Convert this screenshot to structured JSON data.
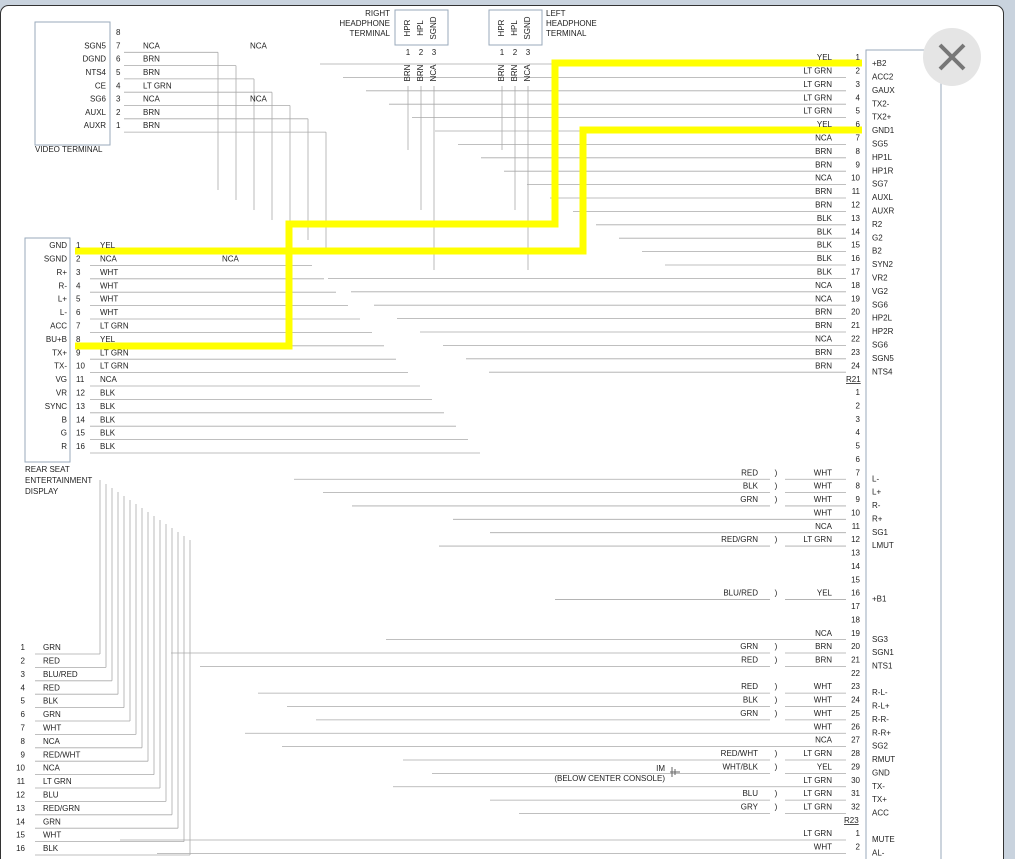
{
  "video_terminal": {
    "label": "VIDEO TERMINAL",
    "pins": [
      [
        8
      ],
      [
        7,
        "SGN5",
        "NCA",
        "NCA"
      ],
      [
        6,
        "DGND",
        "BRN"
      ],
      [
        5,
        "NTS4",
        "BRN"
      ],
      [
        4,
        "CE",
        "LT GRN"
      ],
      [
        3,
        "SG6",
        "NCA",
        "NCA"
      ],
      [
        2,
        "AUXL",
        "BRN"
      ],
      [
        1,
        "AUXR",
        "BRN"
      ]
    ]
  },
  "right_headphone": {
    "label": [
      "RIGHT",
      "HEADPHONE",
      "TERMINAL"
    ],
    "pins": [
      [
        "HPR",
        1,
        "BRN"
      ],
      [
        "HPL",
        2,
        "BRN"
      ],
      [
        "SGND",
        3,
        "NCA"
      ]
    ]
  },
  "left_headphone": {
    "label": [
      "LEFT",
      "HEADPHONE",
      "TERMINAL"
    ],
    "pins": [
      [
        "HPR",
        1,
        "BRN"
      ],
      [
        "HPL",
        2,
        "BRN"
      ],
      [
        "SGND",
        3,
        "NCA"
      ]
    ]
  },
  "rear_display": {
    "label": [
      "REAR SEAT",
      "ENTERTAINMENT",
      "DISPLAY"
    ],
    "pins": [
      [
        "GND",
        1,
        "YEL"
      ],
      [
        "SGND",
        2,
        "NCA",
        "NCA"
      ],
      [
        "R+",
        3,
        "WHT"
      ],
      [
        "R-",
        4,
        "WHT"
      ],
      [
        "L+",
        5,
        "WHT"
      ],
      [
        "L-",
        6,
        "WHT"
      ],
      [
        "ACC",
        7,
        "LT GRN"
      ],
      [
        "BU+B",
        8,
        "YEL"
      ],
      [
        "TX+",
        9,
        "LT GRN"
      ],
      [
        "TX-",
        10,
        "LT GRN"
      ],
      [
        "VG",
        11,
        "NCA"
      ],
      [
        "VR",
        12,
        "BLK"
      ],
      [
        "SYNC",
        13,
        "BLK"
      ],
      [
        "B",
        14,
        "BLK"
      ],
      [
        "G",
        15,
        "BLK"
      ],
      [
        "R",
        16,
        "BLK"
      ]
    ]
  },
  "r21": {
    "label": "R21",
    "rows": [
      [
        1,
        "YEL",
        "+B2"
      ],
      [
        2,
        "LT GRN",
        "ACC2"
      ],
      [
        3,
        "LT GRN",
        "GAUX"
      ],
      [
        4,
        "LT GRN",
        "TX2-"
      ],
      [
        5,
        "LT GRN",
        "TX2+"
      ],
      [
        6,
        "YEL",
        "GND1"
      ],
      [
        7,
        "NCA",
        "SG5"
      ],
      [
        8,
        "BRN",
        "HP1L"
      ],
      [
        9,
        "BRN",
        "HP1R"
      ],
      [
        10,
        "NCA",
        "SG7"
      ],
      [
        11,
        "BRN",
        "AUXL"
      ],
      [
        12,
        "BRN",
        "AUXR"
      ],
      [
        13,
        "BLK",
        "R2"
      ],
      [
        14,
        "BLK",
        "G2"
      ],
      [
        15,
        "BLK",
        "B2"
      ],
      [
        16,
        "BLK",
        "SYN2"
      ],
      [
        17,
        "BLK",
        "VR2"
      ],
      [
        18,
        "NCA",
        "VG2"
      ],
      [
        19,
        "NCA",
        "SG6"
      ],
      [
        20,
        "BRN",
        "HP2L"
      ],
      [
        21,
        "BRN",
        "HP2R"
      ],
      [
        22,
        "NCA",
        "SG6"
      ],
      [
        23,
        "BRN",
        "SGN5"
      ],
      [
        24,
        "BRN",
        "NTS4"
      ]
    ]
  },
  "r22": {
    "rows": [
      {
        "num": 1
      },
      {
        "num": 2
      },
      {
        "num": 3
      },
      {
        "num": 4
      },
      {
        "num": 5
      },
      {
        "num": 6
      },
      {
        "num": 7,
        "left": "RED",
        "wire": "WHT",
        "name": "L-"
      },
      {
        "num": 8,
        "left": "BLK",
        "wire": "WHT",
        "name": "L+"
      },
      {
        "num": 9,
        "left": "GRN",
        "wire": "WHT",
        "name": "R-"
      },
      {
        "num": 10,
        "wire": "WHT",
        "name": "R+"
      },
      {
        "num": 11,
        "wire": "NCA",
        "name": "SG1"
      },
      {
        "num": 12,
        "left": "RED/GRN",
        "wire": "LT GRN",
        "name": "LMUT"
      },
      {
        "num": 13
      },
      {
        "num": 14
      },
      {
        "num": 15
      },
      {
        "num": 16,
        "left": "BLU/RED",
        "wire": "YEL",
        "name": "+B1"
      },
      {
        "num": 17
      },
      {
        "num": 18
      },
      {
        "num": 19,
        "wire": "NCA",
        "name": "SG3"
      },
      {
        "num": 20,
        "left": "GRN",
        "wire": "BRN",
        "name": "SGN1"
      },
      {
        "num": 21,
        "left": "RED",
        "wire": "BRN",
        "name": "NTS1"
      },
      {
        "num": 22
      },
      {
        "num": 23,
        "left": "RED",
        "wire": "WHT",
        "name": "R-L-"
      },
      {
        "num": 24,
        "left": "BLK",
        "wire": "WHT",
        "name": "R-L+"
      },
      {
        "num": 25,
        "left": "GRN",
        "wire": "WHT",
        "name": "R-R-"
      },
      {
        "num": 26,
        "wire": "WHT",
        "name": "R-R+"
      },
      {
        "num": 27,
        "wire": "NCA",
        "name": "SG2"
      },
      {
        "num": 28,
        "left": "RED/WHT",
        "wire": "LT GRN",
        "name": "RMUT"
      },
      {
        "num": 29,
        "left": "WHT/BLK",
        "wire": "YEL",
        "name": "GND"
      },
      {
        "num": 30,
        "wire": "LT GRN",
        "name": "TX-"
      },
      {
        "num": 31,
        "left": "BLU",
        "wire": "LT GRN",
        "name": "TX+"
      },
      {
        "num": 32,
        "left": "GRY",
        "wire": "LT GRN",
        "name": "ACC"
      }
    ]
  },
  "r23": {
    "label": "R23",
    "rows": [
      {
        "num": 1,
        "wire": "LT GRN",
        "name": "MUTE"
      },
      {
        "num": 2,
        "wire": "WHT",
        "name": "AL-"
      }
    ]
  },
  "ground": {
    "label": "IM",
    "note": "(BELOW CENTER CONSOLE)"
  },
  "lower_connector": {
    "rows": [
      [
        1,
        "GRN"
      ],
      [
        2,
        "RED"
      ],
      [
        3,
        "BLU/RED"
      ],
      [
        4,
        "RED"
      ],
      [
        5,
        "BLK"
      ],
      [
        6,
        "GRN"
      ],
      [
        7,
        "WHT"
      ],
      [
        8,
        "NCA"
      ],
      [
        9,
        "RED/WHT"
      ],
      [
        10,
        "NCA"
      ],
      [
        11,
        "LT GRN"
      ],
      [
        12,
        "BLU"
      ],
      [
        13,
        "RED/GRN"
      ],
      [
        14,
        "GRN"
      ],
      [
        15,
        "WHT"
      ],
      [
        16,
        "BLK"
      ]
    ]
  }
}
